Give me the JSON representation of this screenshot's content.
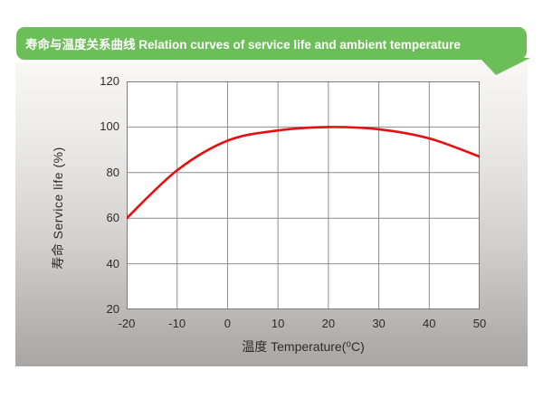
{
  "banner": {
    "label": "寿命与温度关系曲线 Relation curves of service life and ambient temperature",
    "bg_color": "#6cbe58",
    "text_color": "#ffffff"
  },
  "chart_data": {
    "type": "line",
    "title": "寿命与温度关系曲线 Relation curves of service life and ambient temperature",
    "xlabel": "温度 Temperature(⁰C)",
    "ylabel": "寿命 Service life (%)",
    "x": [
      -20,
      -10,
      0,
      10,
      20,
      30,
      40,
      50
    ],
    "series": [
      {
        "name": "service-life-curve",
        "color": "#e60f0f",
        "values": [
          60,
          81,
          94,
          98.5,
          100,
          99,
          95,
          87
        ]
      }
    ],
    "xlim": [
      -20,
      50
    ],
    "ylim": [
      20,
      120
    ],
    "x_ticks": [
      -20,
      -10,
      0,
      10,
      20,
      30,
      40,
      50
    ],
    "y_ticks": [
      20,
      40,
      60,
      80,
      100,
      120
    ],
    "grid": true,
    "grid_color": "#8c8c8c",
    "border_color": "#7b7b7b",
    "plot_bg": "#ffffff",
    "legend": "none"
  }
}
